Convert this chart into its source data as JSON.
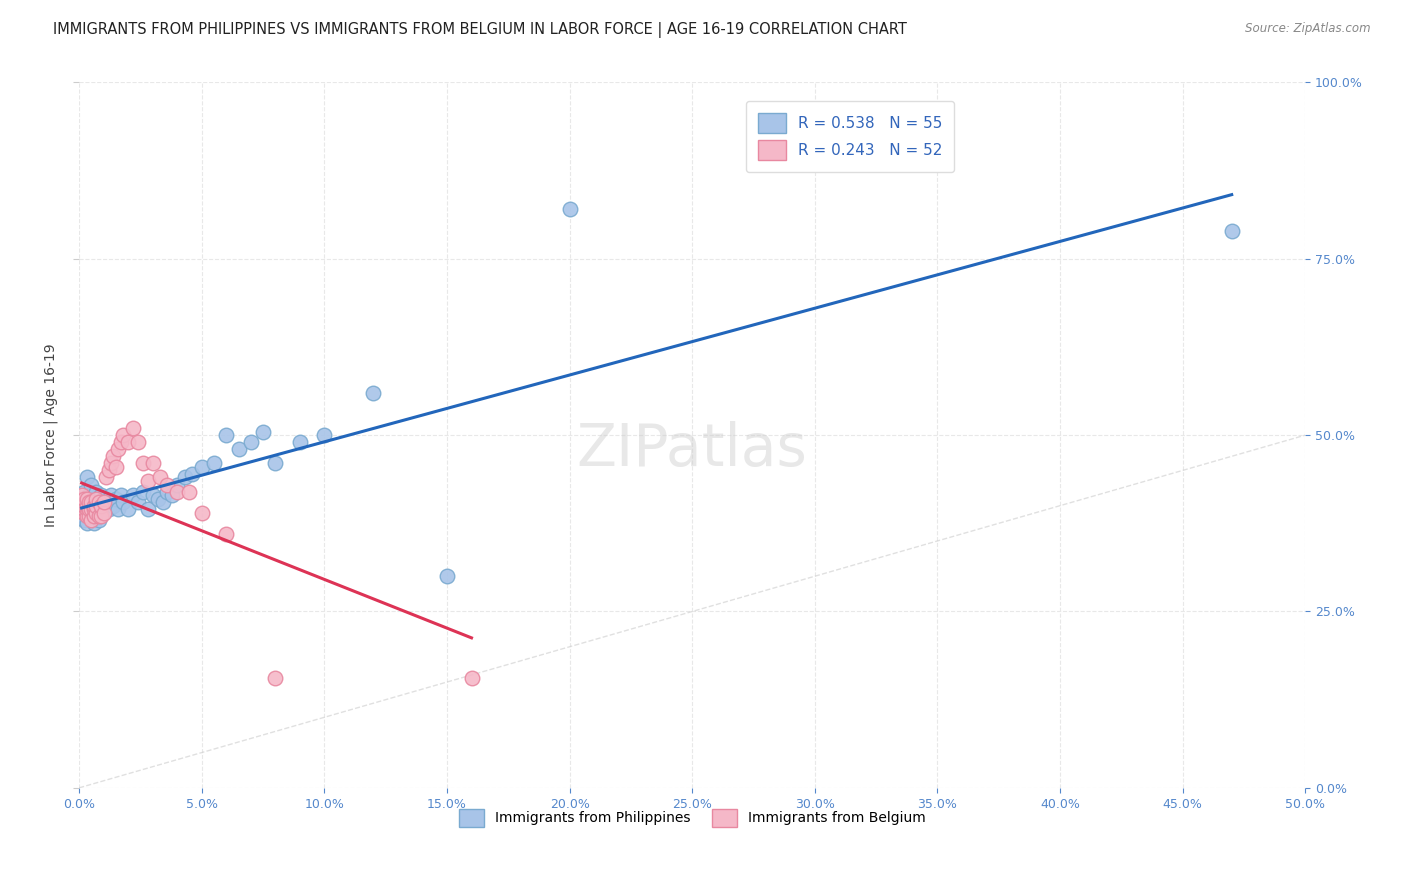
{
  "title": "IMMIGRANTS FROM PHILIPPINES VS IMMIGRANTS FROM BELGIUM IN LABOR FORCE | AGE 16-19 CORRELATION CHART",
  "source": "Source: ZipAtlas.com",
  "ylabel": "In Labor Force | Age 16-19",
  "xlim": [
    0.0,
    0.5
  ],
  "ylim": [
    0.0,
    1.0
  ],
  "xticks": [
    0.0,
    0.05,
    0.1,
    0.15,
    0.2,
    0.25,
    0.3,
    0.35,
    0.4,
    0.45,
    0.5
  ],
  "yticks": [
    0.0,
    0.25,
    0.5,
    0.75,
    1.0
  ],
  "philippines_color": "#a8c4e8",
  "belgium_color": "#f5b8c8",
  "philippines_edge": "#7aaad0",
  "belgium_edge": "#e888a0",
  "line_philippines": "#2266bb",
  "line_belgium": "#dd3355",
  "line_diag": "#cccccc",
  "R_phil": 0.538,
  "N_phil": 55,
  "R_belg": 0.243,
  "N_belg": 52,
  "philippines_x": [
    0.001,
    0.001,
    0.002,
    0.002,
    0.003,
    0.003,
    0.003,
    0.004,
    0.004,
    0.005,
    0.005,
    0.005,
    0.006,
    0.006,
    0.007,
    0.007,
    0.008,
    0.008,
    0.009,
    0.009,
    0.01,
    0.011,
    0.012,
    0.013,
    0.014,
    0.015,
    0.016,
    0.017,
    0.018,
    0.02,
    0.022,
    0.024,
    0.026,
    0.028,
    0.03,
    0.032,
    0.034,
    0.036,
    0.038,
    0.04,
    0.043,
    0.046,
    0.05,
    0.055,
    0.06,
    0.065,
    0.07,
    0.075,
    0.08,
    0.09,
    0.1,
    0.12,
    0.15,
    0.2,
    0.47
  ],
  "philippines_y": [
    0.395,
    0.41,
    0.38,
    0.42,
    0.375,
    0.4,
    0.44,
    0.385,
    0.415,
    0.39,
    0.405,
    0.43,
    0.375,
    0.41,
    0.385,
    0.42,
    0.38,
    0.405,
    0.39,
    0.415,
    0.395,
    0.405,
    0.395,
    0.415,
    0.4,
    0.41,
    0.395,
    0.415,
    0.405,
    0.395,
    0.415,
    0.405,
    0.42,
    0.395,
    0.415,
    0.41,
    0.405,
    0.42,
    0.415,
    0.43,
    0.44,
    0.445,
    0.455,
    0.46,
    0.5,
    0.48,
    0.49,
    0.505,
    0.46,
    0.49,
    0.5,
    0.56,
    0.3,
    0.82,
    0.79
  ],
  "belgium_x": [
    0.001,
    0.001,
    0.001,
    0.001,
    0.002,
    0.002,
    0.002,
    0.002,
    0.003,
    0.003,
    0.003,
    0.003,
    0.004,
    0.004,
    0.004,
    0.005,
    0.005,
    0.005,
    0.006,
    0.006,
    0.006,
    0.007,
    0.007,
    0.007,
    0.008,
    0.008,
    0.009,
    0.009,
    0.01,
    0.01,
    0.011,
    0.012,
    0.013,
    0.014,
    0.015,
    0.016,
    0.017,
    0.018,
    0.02,
    0.022,
    0.024,
    0.026,
    0.028,
    0.03,
    0.033,
    0.036,
    0.04,
    0.045,
    0.05,
    0.06,
    0.08,
    0.16
  ],
  "belgium_y": [
    0.395,
    0.4,
    0.41,
    0.415,
    0.39,
    0.395,
    0.4,
    0.41,
    0.385,
    0.395,
    0.4,
    0.41,
    0.385,
    0.395,
    0.405,
    0.38,
    0.395,
    0.405,
    0.385,
    0.395,
    0.4,
    0.39,
    0.4,
    0.41,
    0.385,
    0.405,
    0.385,
    0.4,
    0.39,
    0.405,
    0.44,
    0.45,
    0.46,
    0.47,
    0.455,
    0.48,
    0.49,
    0.5,
    0.49,
    0.51,
    0.49,
    0.46,
    0.435,
    0.46,
    0.44,
    0.43,
    0.42,
    0.42,
    0.39,
    0.36,
    0.155,
    0.155
  ],
  "background_color": "#ffffff",
  "grid_color": "#e8e8e8",
  "title_fontsize": 10.5,
  "label_fontsize": 10,
  "tick_fontsize": 9,
  "legend_fontsize": 11,
  "watermark": "ZIPatlas"
}
